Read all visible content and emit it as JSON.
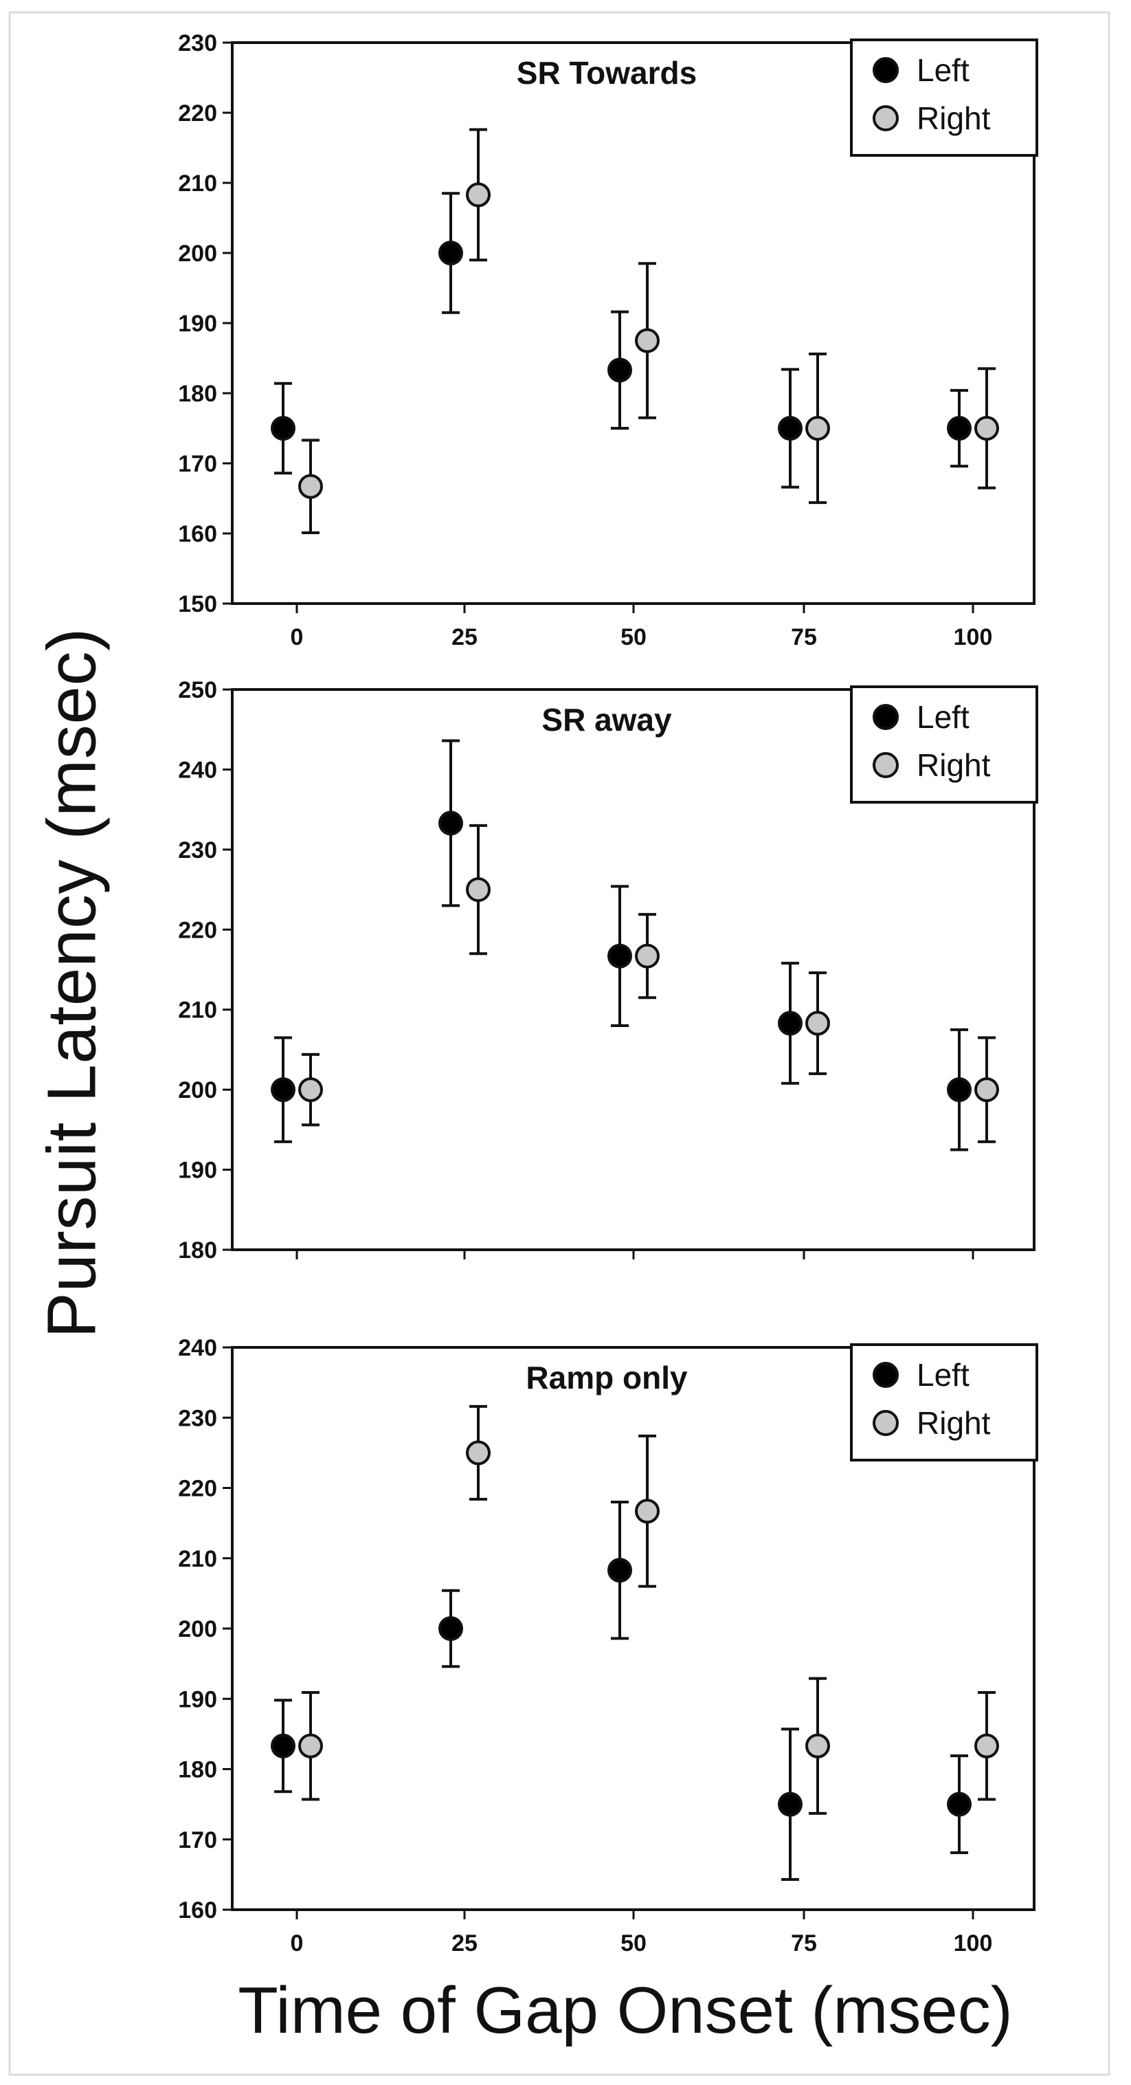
{
  "ylabel": "Pursuit Latency (msec)",
  "xlabel": "Time of Gap Onset (msec)",
  "chart_data": [
    {
      "type": "scatter",
      "title": "SR Towards",
      "x": [
        0,
        25,
        50,
        75,
        100
      ],
      "xticks": [
        "0",
        "25",
        "50",
        "75",
        "100"
      ],
      "ylim": [
        150,
        230
      ],
      "yticks": [
        150,
        160,
        170,
        180,
        190,
        200,
        210,
        220,
        230
      ],
      "legend_position": "top-right",
      "series": [
        {
          "name": "Left",
          "color": "#000000",
          "values": [
            175,
            200,
            183.3,
            175,
            175
          ],
          "err_low": [
            168.6,
            191.5,
            175,
            166.6,
            169.6
          ],
          "err_high": [
            181.4,
            208.5,
            191.6,
            183.4,
            180.4
          ]
        },
        {
          "name": "Right",
          "color": "#c8c8c8",
          "values": [
            166.7,
            208.3,
            187.5,
            175,
            175
          ],
          "err_low": [
            160.1,
            199,
            176.5,
            164.4,
            166.5
          ],
          "err_high": [
            173.3,
            217.6,
            198.5,
            185.6,
            183.5
          ]
        }
      ]
    },
    {
      "type": "scatter",
      "title": "SR away",
      "x": [
        0,
        25,
        50,
        75,
        100
      ],
      "xticks": [],
      "ylim": [
        180,
        250
      ],
      "yticks": [
        180,
        190,
        200,
        210,
        220,
        230,
        240,
        250
      ],
      "legend_position": "top-right",
      "series": [
        {
          "name": "Left",
          "color": "#000000",
          "values": [
            200,
            233.3,
            216.7,
            208.3,
            200
          ],
          "err_low": [
            193.5,
            223,
            208,
            200.8,
            192.5
          ],
          "err_high": [
            206.5,
            243.6,
            225.4,
            215.8,
            207.5
          ]
        },
        {
          "name": "Right",
          "color": "#c8c8c8",
          "values": [
            200,
            225,
            216.7,
            208.3,
            200
          ],
          "err_low": [
            195.6,
            217,
            211.5,
            202,
            193.5
          ],
          "err_high": [
            204.4,
            233,
            221.9,
            214.6,
            206.5
          ]
        }
      ]
    },
    {
      "type": "scatter",
      "title": "Ramp only",
      "x": [
        0,
        25,
        50,
        75,
        100
      ],
      "xticks": [
        "0",
        "25",
        "50",
        "75",
        "100"
      ],
      "ylim": [
        160,
        240
      ],
      "yticks": [
        160,
        170,
        180,
        190,
        200,
        210,
        220,
        230,
        240
      ],
      "legend_position": "top-right",
      "series": [
        {
          "name": "Left",
          "color": "#000000",
          "values": [
            183.3,
            200,
            208.3,
            175,
            175
          ],
          "err_low": [
            176.8,
            194.6,
            198.6,
            164.3,
            168.1
          ],
          "err_high": [
            189.8,
            205.4,
            218,
            185.7,
            181.9
          ]
        },
        {
          "name": "Right",
          "color": "#c8c8c8",
          "values": [
            183.3,
            225,
            216.7,
            183.3,
            183.3
          ],
          "err_low": [
            175.7,
            218.4,
            206,
            173.7,
            175.7
          ],
          "err_high": [
            190.9,
            231.6,
            227.4,
            192.9,
            190.9
          ]
        }
      ]
    }
  ]
}
